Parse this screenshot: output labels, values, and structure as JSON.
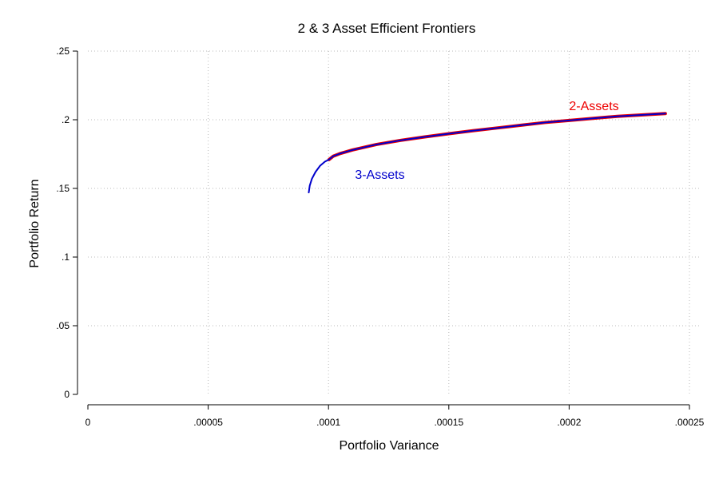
{
  "chart_data": {
    "type": "line",
    "title": "2 & 3 Asset Efficient Frontiers",
    "xlabel": "Portfolio Variance",
    "ylabel": "Portfolio Return",
    "xlim": [
      0,
      0.00025
    ],
    "ylim": [
      0,
      0.25
    ],
    "x_ticks": [
      0,
      5e-05,
      0.0001,
      0.00015,
      0.0002,
      0.00025
    ],
    "x_tick_labels": [
      "0",
      ".00005",
      ".0001",
      ".00015",
      ".0002",
      ".00025"
    ],
    "y_ticks": [
      0,
      0.05,
      0.1,
      0.15,
      0.2,
      0.25
    ],
    "y_tick_labels": [
      "0",
      ".05",
      ".1",
      ".15",
      ".2",
      ".25"
    ],
    "grid": true,
    "series": [
      {
        "name": "3-Assets",
        "color": "#0000cc",
        "x": [
          9.18e-05,
          9.22e-05,
          9.31e-05,
          9.46e-05,
          9.65e-05,
          9.85e-05,
          0.0001002,
          0.000102,
          0.000105,
          0.00011,
          0.00012,
          0.00013,
          0.00014,
          0.00015,
          0.00016,
          0.00017,
          0.00018,
          0.00019,
          0.0002,
          0.00021,
          0.00022,
          0.00023,
          0.00024
        ],
        "y": [
          0.147,
          0.152,
          0.157,
          0.162,
          0.1665,
          0.1695,
          0.171,
          0.1735,
          0.1755,
          0.178,
          0.182,
          0.185,
          0.1875,
          0.1898,
          0.192,
          0.194,
          0.196,
          0.198,
          0.1995,
          0.201,
          0.2025,
          0.2035,
          0.2045
        ]
      },
      {
        "name": "2-Assets",
        "color": "#ee0000",
        "x": [
          0.0001002,
          0.000102,
          0.000105,
          0.00011,
          0.00012,
          0.00013,
          0.00014,
          0.00015,
          0.00016,
          0.00017,
          0.00018,
          0.00019,
          0.0002,
          0.00021,
          0.00022,
          0.00023,
          0.00024
        ],
        "y": [
          0.171,
          0.1735,
          0.1755,
          0.178,
          0.182,
          0.185,
          0.1875,
          0.1898,
          0.192,
          0.194,
          0.196,
          0.198,
          0.1995,
          0.201,
          0.2025,
          0.2035,
          0.2045
        ]
      }
    ],
    "annotations": [
      {
        "text": "2-Assets",
        "x": 0.0002,
        "y": 0.207,
        "color": "#ee0000"
      },
      {
        "text": "3-Assets",
        "x": 0.000111,
        "y": 0.157,
        "color": "#0000cc"
      }
    ]
  }
}
